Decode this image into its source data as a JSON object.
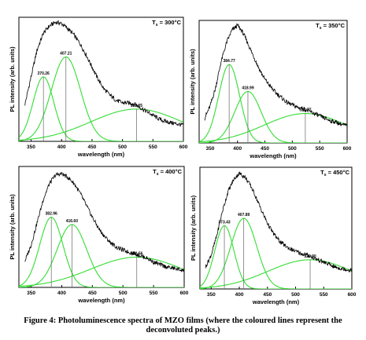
{
  "caption": {
    "line1": "Figure 4: Photoluminescence spectra of MZO films (where the coloured lines represent the",
    "line2": "deconvoluted peaks.)"
  },
  "colors": {
    "fit": "#33dd33",
    "data": "#000000",
    "marker": "#666666"
  },
  "chart_data": [
    {
      "type": "line",
      "annotation_main": "T",
      "annotation_sub": "s",
      "annotation_rest": " = 300°C",
      "xlabel": "wavelength (nm)",
      "ylabel": "PL intensity (arb. units)",
      "xlim": [
        330,
        600
      ],
      "ylim": [
        0,
        1
      ],
      "xticks": [
        "350",
        "400",
        "450",
        "500",
        "550",
        "600"
      ],
      "spectrum": {
        "x": [
          340,
          350,
          360,
          370,
          380,
          390,
          400,
          410,
          420,
          430,
          440,
          450,
          460,
          470,
          480,
          490,
          500,
          510,
          520,
          530,
          540,
          550,
          560,
          570,
          580,
          590,
          600
        ],
        "y": [
          0.3,
          0.52,
          0.74,
          0.87,
          0.93,
          0.96,
          0.95,
          0.91,
          0.86,
          0.79,
          0.7,
          0.6,
          0.5,
          0.42,
          0.37,
          0.33,
          0.31,
          0.31,
          0.3,
          0.27,
          0.24,
          0.21,
          0.18,
          0.16,
          0.15,
          0.14,
          0.13
        ]
      },
      "peaks": [
        {
          "center": 370.26,
          "height": 0.52,
          "width": 17,
          "label": "370.26"
        },
        {
          "center": 407.21,
          "height": 0.68,
          "width": 24,
          "label": "407.21"
        },
        {
          "center": 523.05,
          "height": 0.26,
          "width": 75,
          "label": "523.05"
        }
      ]
    },
    {
      "type": "line",
      "annotation_main": "T",
      "annotation_sub": "s",
      "annotation_rest": " = 350°C",
      "xlabel": "wavelength (nm)",
      "ylabel": "PL intensity (arb. units)",
      "xlim": [
        330,
        600
      ],
      "ylim": [
        0,
        1
      ],
      "xticks": [
        "350",
        "400",
        "450",
        "500",
        "550",
        "600"
      ],
      "spectrum": {
        "x": [
          340,
          350,
          360,
          370,
          380,
          390,
          400,
          410,
          420,
          430,
          440,
          450,
          460,
          470,
          480,
          490,
          500,
          510,
          520,
          530,
          540,
          550,
          560,
          570,
          580,
          590,
          600
        ],
        "y": [
          0.2,
          0.3,
          0.45,
          0.66,
          0.82,
          0.92,
          0.96,
          0.9,
          0.8,
          0.7,
          0.6,
          0.52,
          0.46,
          0.41,
          0.37,
          0.33,
          0.31,
          0.29,
          0.28,
          0.26,
          0.24,
          0.22,
          0.2,
          0.18,
          0.17,
          0.15,
          0.14
        ]
      },
      "peaks": [
        {
          "center": 384.77,
          "height": 0.64,
          "width": 19,
          "label": "384.77"
        },
        {
          "center": 418.99,
          "height": 0.42,
          "width": 24,
          "label": "418.99"
        },
        {
          "center": 523.77,
          "height": 0.24,
          "width": 75,
          "label": "523.77"
        }
      ]
    },
    {
      "type": "line",
      "annotation_main": "T",
      "annotation_sub": "s",
      "annotation_rest": " = 400°C",
      "xlabel": "wavelength (nm)",
      "ylabel": "PL intensity (arb. units)",
      "xlim": [
        330,
        600
      ],
      "ylim": [
        0,
        1
      ],
      "xticks": [
        "350",
        "400",
        "450",
        "500",
        "550",
        "600"
      ],
      "spectrum": {
        "x": [
          340,
          350,
          360,
          370,
          380,
          390,
          400,
          410,
          420,
          430,
          440,
          450,
          460,
          470,
          480,
          490,
          500,
          510,
          520,
          530,
          540,
          550,
          560,
          570,
          580,
          590,
          600
        ],
        "y": [
          0.22,
          0.35,
          0.54,
          0.73,
          0.86,
          0.93,
          0.94,
          0.91,
          0.86,
          0.78,
          0.68,
          0.58,
          0.49,
          0.42,
          0.37,
          0.33,
          0.31,
          0.29,
          0.28,
          0.26,
          0.24,
          0.21,
          0.19,
          0.17,
          0.16,
          0.15,
          0.14
        ]
      },
      "peaks": [
        {
          "center": 382.96,
          "height": 0.58,
          "width": 19,
          "label": "382.96"
        },
        {
          "center": 416.6,
          "height": 0.52,
          "width": 24,
          "label": "416.60"
        },
        {
          "center": 522.56,
          "height": 0.25,
          "width": 75,
          "label": "522.56"
        }
      ]
    },
    {
      "type": "line",
      "annotation_main": "T",
      "annotation_sub": "s",
      "annotation_rest": " = 450°C",
      "xlabel": "wavelength (nm)",
      "ylabel": "PL intensity (arb. units)",
      "xlim": [
        330,
        600
      ],
      "ylim": [
        0,
        1
      ],
      "xticks": [
        "350",
        "400",
        "450",
        "500",
        "550",
        "600"
      ],
      "spectrum": {
        "x": [
          340,
          350,
          360,
          370,
          380,
          390,
          400,
          410,
          420,
          430,
          440,
          450,
          460,
          470,
          480,
          490,
          500,
          510,
          520,
          530,
          540,
          550,
          560,
          570,
          580,
          590,
          600
        ],
        "y": [
          0.18,
          0.28,
          0.44,
          0.64,
          0.8,
          0.9,
          0.95,
          0.92,
          0.85,
          0.75,
          0.64,
          0.54,
          0.46,
          0.4,
          0.36,
          0.33,
          0.31,
          0.29,
          0.28,
          0.26,
          0.24,
          0.22,
          0.2,
          0.18,
          0.17,
          0.16,
          0.15
        ]
      },
      "peaks": [
        {
          "center": 373.43,
          "height": 0.52,
          "width": 17,
          "label": "373.43"
        },
        {
          "center": 407.89,
          "height": 0.58,
          "width": 23,
          "label": "407.89"
        },
        {
          "center": 525.9,
          "height": 0.24,
          "width": 75,
          "label": "525.90"
        }
      ]
    }
  ]
}
